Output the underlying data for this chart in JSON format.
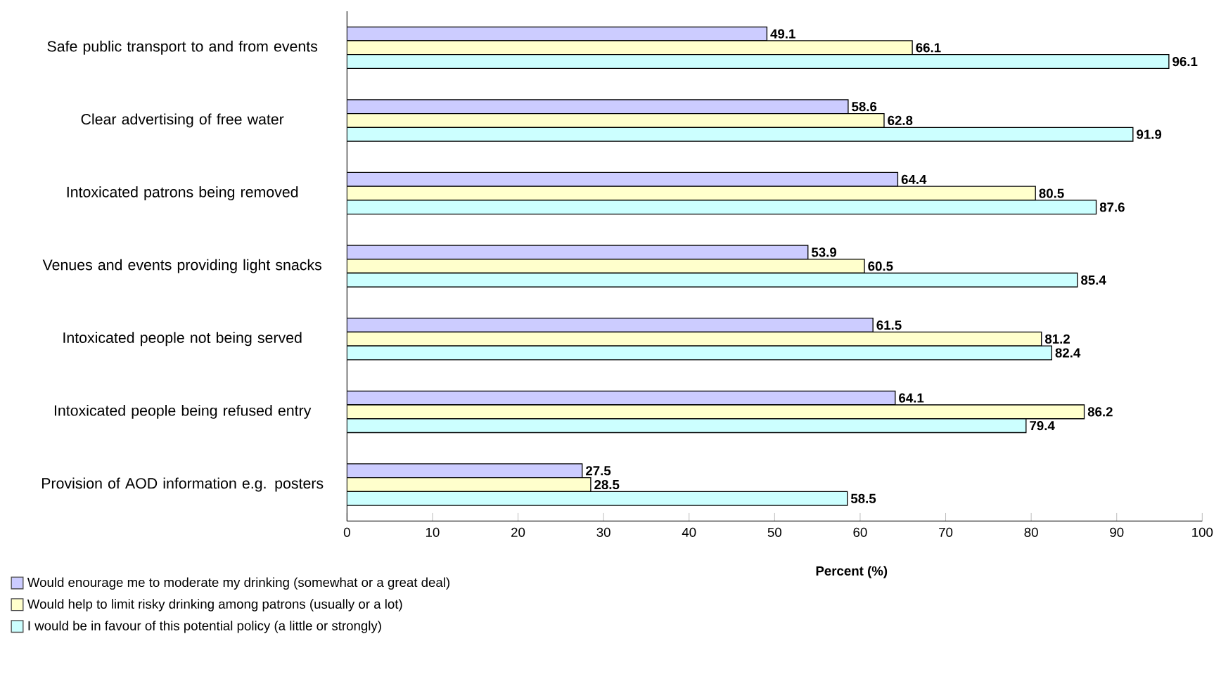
{
  "chart_data": {
    "type": "bar",
    "orientation": "horizontal",
    "xlabel": "Percent (%)",
    "categories": [
      "Safe public transport to and from events",
      "Clear advertising of free water",
      "Intoxicated patrons being removed",
      "Venues and events providing light snacks",
      "Intoxicated people not being served",
      "Intoxicated people being refused entry",
      "Provision of AOD information e.g. posters"
    ],
    "series": [
      {
        "name": "Would enourage me to moderate my drinking (somewhat or a great deal)",
        "color": "#ccccff",
        "values": [
          49.1,
          58.6,
          64.4,
          53.9,
          61.5,
          64.1,
          27.5
        ]
      },
      {
        "name": "Would help to limit risky drinking among patrons (usually or a lot)",
        "color": "#ffffcc",
        "values": [
          66.1,
          62.8,
          80.5,
          60.5,
          81.2,
          86.2,
          28.5
        ]
      },
      {
        "name": "I would be in favour of this potential policy (a little or strongly)",
        "color": "#ccffff",
        "values": [
          96.1,
          91.9,
          87.6,
          85.4,
          82.4,
          79.4,
          58.5
        ]
      }
    ],
    "xlim": [
      0,
      100
    ],
    "xticks": [
      0,
      10,
      20,
      30,
      40,
      50,
      60,
      70,
      80,
      90,
      100
    ],
    "data_labels": true,
    "legend": "bottom left",
    "grid": false
  }
}
